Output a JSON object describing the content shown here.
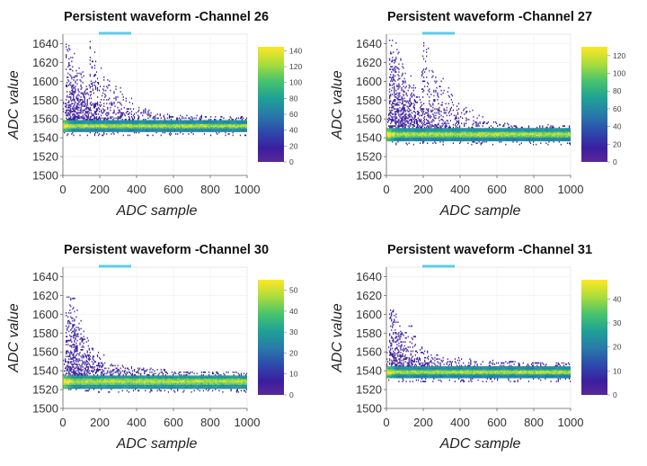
{
  "chart_data": [
    {
      "type": "heatmap",
      "title": "Persistent waveform -Channel 26",
      "xlabel": "ADC sample",
      "ylabel": "ADC value",
      "xlim": [
        0,
        1000
      ],
      "ylim": [
        1500,
        1650
      ],
      "xticks": [
        "0",
        "200",
        "400",
        "600",
        "800",
        "1000"
      ],
      "yticks": [
        "1500",
        "1520",
        "1540",
        "1560",
        "1580",
        "1600",
        "1620",
        "1640"
      ],
      "colorbar": {
        "min": 0,
        "max": 145,
        "ticks": [
          "0",
          "20",
          "40",
          "60",
          "80",
          "100",
          "120",
          "140"
        ]
      },
      "baseline": 1552,
      "baseline_spread": 6,
      "pulse_peak": 1640,
      "pulse_peak_sample": 40,
      "secondary_peak": 1645,
      "secondary_peak_sample": 150,
      "decay": 150,
      "peak_count": 145
    },
    {
      "type": "heatmap",
      "title": "Persistent waveform -Channel 27",
      "xlabel": "ADC sample",
      "ylabel": "ADC value",
      "xlim": [
        0,
        1000
      ],
      "ylim": [
        1500,
        1650
      ],
      "xticks": [
        "0",
        "200",
        "400",
        "600",
        "800",
        "1000"
      ],
      "yticks": [
        "1500",
        "1520",
        "1540",
        "1560",
        "1580",
        "1600",
        "1620",
        "1640"
      ],
      "colorbar": {
        "min": 0,
        "max": 130,
        "ticks": [
          "0",
          "20",
          "40",
          "60",
          "80",
          "100",
          "120"
        ]
      },
      "baseline": 1543,
      "baseline_spread": 7,
      "pulse_peak": 1645,
      "pulse_peak_sample": 40,
      "secondary_peak": 1645,
      "secondary_peak_sample": 200,
      "decay": 160,
      "peak_count": 130
    },
    {
      "type": "heatmap",
      "title": "Persistent waveform -Channel 30",
      "xlabel": "ADC sample",
      "ylabel": "ADC value",
      "xlim": [
        0,
        1000
      ],
      "ylim": [
        1500,
        1650
      ],
      "xticks": [
        "0",
        "200",
        "400",
        "600",
        "800",
        "1000"
      ],
      "yticks": [
        "1500",
        "1520",
        "1540",
        "1560",
        "1580",
        "1600",
        "1620",
        "1640"
      ],
      "colorbar": {
        "min": 0,
        "max": 55,
        "ticks": [
          "0",
          "10",
          "20",
          "30",
          "40",
          "50"
        ]
      },
      "baseline": 1528,
      "baseline_spread": 7,
      "pulse_peak": 1620,
      "pulse_peak_sample": 55,
      "secondary_peak": 1580,
      "secondary_peak_sample": 120,
      "decay": 120,
      "peak_count": 55
    },
    {
      "type": "heatmap",
      "title": "Persistent waveform -Channel 31",
      "xlabel": "ADC sample",
      "ylabel": "ADC value",
      "xlim": [
        0,
        1000
      ],
      "ylim": [
        1500,
        1650
      ],
      "xticks": [
        "0",
        "200",
        "400",
        "600",
        "800",
        "1000"
      ],
      "yticks": [
        "1500",
        "1520",
        "1540",
        "1560",
        "1580",
        "1600",
        "1620",
        "1640"
      ],
      "colorbar": {
        "min": 0,
        "max": 48,
        "ticks": [
          "0",
          "10",
          "20",
          "30",
          "40"
        ]
      },
      "baseline": 1538,
      "baseline_spread": 6,
      "pulse_peak": 1605,
      "pulse_peak_sample": 55,
      "secondary_peak": 1590,
      "secondary_peak_sample": 130,
      "decay": 100,
      "peak_count": 48
    }
  ]
}
